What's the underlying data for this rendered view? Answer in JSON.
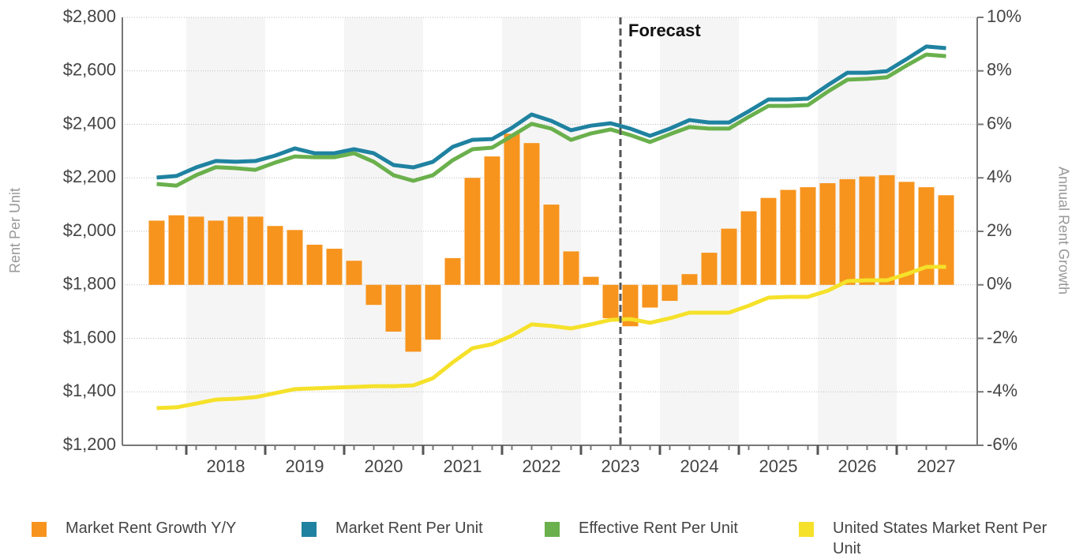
{
  "chart_data": {
    "type": "bar_line",
    "y_axis_label": "Rent Per Unit",
    "y2_axis_label": "Annual Rent Growth",
    "annotations": [
      {
        "text": "Forecast"
      }
    ],
    "categories": [
      null,
      null,
      null,
      "2018",
      null,
      null,
      null,
      "2019",
      null,
      null,
      null,
      "2020",
      null,
      null,
      null,
      "2021",
      null,
      null,
      null,
      "2022",
      null,
      null,
      null,
      "2023",
      null,
      null,
      null,
      "2024",
      null,
      null,
      null,
      "2025",
      null,
      null,
      null,
      "2026",
      null,
      null,
      null,
      "2027",
      null
    ],
    "ylim": [
      1200,
      2800
    ],
    "yticks": [
      {
        "value": 1200,
        "label": "$1,200"
      },
      {
        "value": 1400,
        "label": "$1,400"
      },
      {
        "value": 1600,
        "label": "$1,600"
      },
      {
        "value": 1800,
        "label": "$1,800"
      },
      {
        "value": 2000,
        "label": "$2,000"
      },
      {
        "value": 2200,
        "label": "$2,200"
      },
      {
        "value": 2400,
        "label": "$2,400"
      },
      {
        "value": 2600,
        "label": "$2,600"
      },
      {
        "value": 2800,
        "label": "$2,800"
      }
    ],
    "y2lim": [
      -6,
      10
    ],
    "y2ticks": [
      {
        "value": -6,
        "label": "-6%"
      },
      {
        "value": -4,
        "label": "-4%"
      },
      {
        "value": -2,
        "label": "-2%"
      },
      {
        "value": 0,
        "label": "0%"
      },
      {
        "value": 2,
        "label": "2%"
      },
      {
        "value": 4,
        "label": "4%"
      },
      {
        "value": 6,
        "label": "6%"
      },
      {
        "value": 8,
        "label": "8%"
      },
      {
        "value": 10,
        "label": "10%"
      }
    ],
    "grid": true,
    "series": [
      {
        "name": "Market Rent Growth Y/Y",
        "type": "bar",
        "axis": "y2",
        "color": "#f7941d",
        "values": [
          2.4,
          2.6,
          2.55,
          2.4,
          2.55,
          2.55,
          2.2,
          2.05,
          1.5,
          1.35,
          0.9,
          -0.75,
          -1.75,
          -2.5,
          -2.05,
          1.0,
          4.0,
          4.8,
          5.65,
          5.3,
          3.0,
          1.25,
          0.3,
          -1.25,
          -1.55,
          -0.85,
          -0.6,
          0.4,
          1.2,
          2.1,
          2.75,
          3.25,
          3.55,
          3.65,
          3.8,
          3.95,
          4.05,
          4.1,
          3.85,
          3.65,
          3.35
        ]
      },
      {
        "name": "Market Rent Per Unit",
        "type": "line",
        "color": "#1f82a0",
        "values": [
          2201,
          2207,
          2239,
          2263,
          2260,
          2263,
          2283,
          2310,
          2292,
          2292,
          2307,
          2292,
          2248,
          2239,
          2260,
          2316,
          2342,
          2345,
          2387,
          2437,
          2413,
          2378,
          2395,
          2404,
          2384,
          2357,
          2384,
          2416,
          2407,
          2407,
          2449,
          2493,
          2493,
          2496,
          2546,
          2593,
          2593,
          2599,
          2644,
          2691,
          2685
        ]
      },
      {
        "name": "Effective Rent Per Unit",
        "type": "line",
        "color": "#6ab04c",
        "values": [
          2177,
          2171,
          2210,
          2240,
          2236,
          2230,
          2257,
          2280,
          2277,
          2277,
          2292,
          2260,
          2210,
          2189,
          2210,
          2266,
          2307,
          2313,
          2357,
          2402,
          2384,
          2342,
          2366,
          2381,
          2360,
          2334,
          2363,
          2390,
          2384,
          2384,
          2428,
          2469,
          2469,
          2472,
          2522,
          2567,
          2570,
          2576,
          2620,
          2661,
          2655
        ]
      },
      {
        "name": "United States Market Rent Per Unit",
        "type": "line",
        "color": "#f5e12a",
        "values": [
          1339,
          1342,
          1356,
          1371,
          1374,
          1380,
          1395,
          1410,
          1413,
          1416,
          1418,
          1421,
          1421,
          1424,
          1451,
          1510,
          1563,
          1578,
          1610,
          1652,
          1646,
          1637,
          1652,
          1669,
          1672,
          1658,
          1675,
          1696,
          1696,
          1696,
          1722,
          1752,
          1755,
          1755,
          1778,
          1814,
          1817,
          1817,
          1840,
          1867,
          1867
        ]
      }
    ]
  }
}
